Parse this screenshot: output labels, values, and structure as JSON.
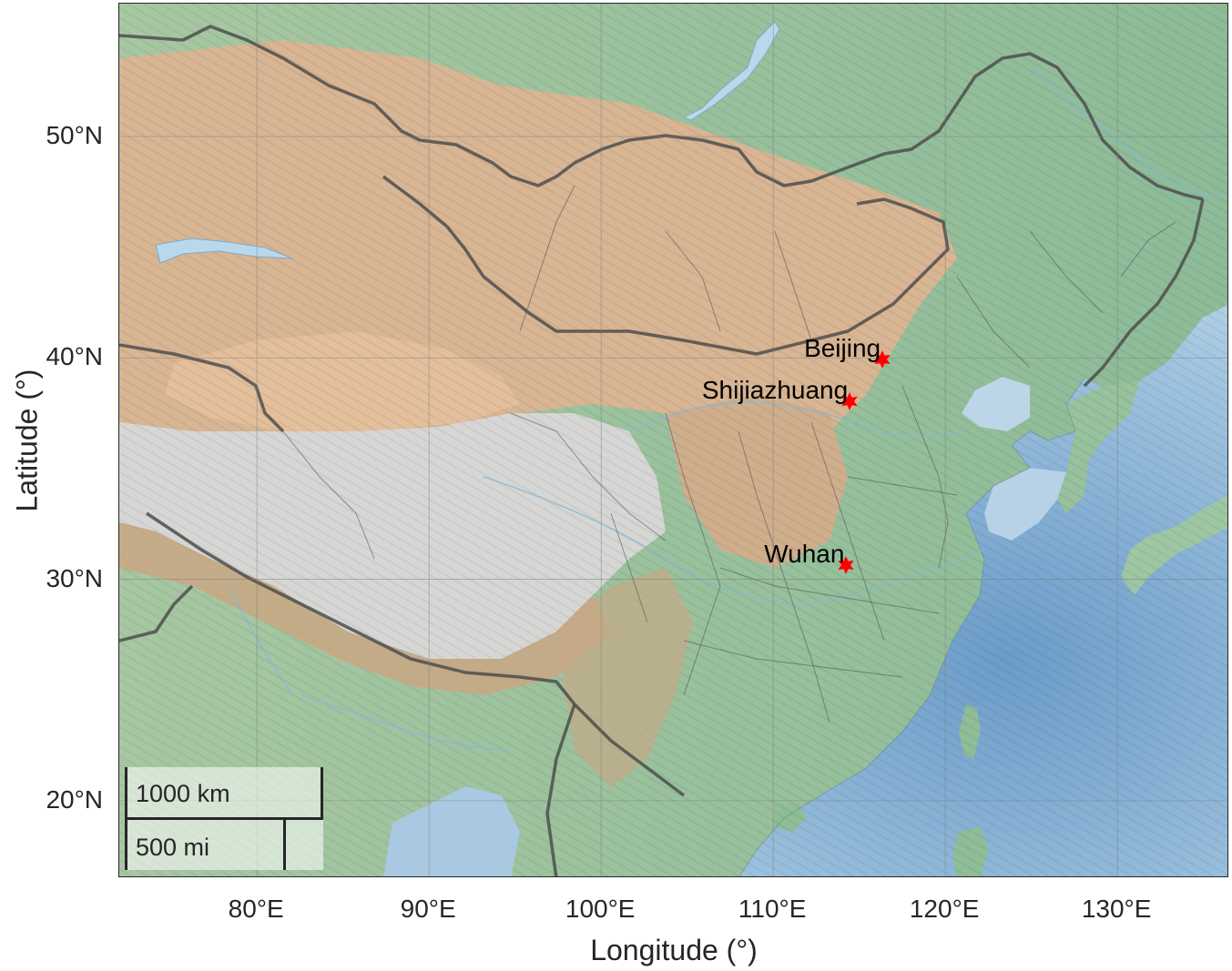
{
  "axes": {
    "x_title": "Longitude (°)",
    "y_title": "Latitude (°)",
    "x_ticks": [
      {
        "value": 80,
        "label": "80°E"
      },
      {
        "value": 90,
        "label": "90°E"
      },
      {
        "value": 100,
        "label": "100°E"
      },
      {
        "value": 110,
        "label": "110°E"
      },
      {
        "value": 120,
        "label": "120°E"
      },
      {
        "value": 130,
        "label": "130°E"
      }
    ],
    "y_ticks": [
      {
        "value": 50,
        "label": "50°N"
      },
      {
        "value": 40,
        "label": "40°N"
      },
      {
        "value": 30,
        "label": "30°N"
      },
      {
        "value": 20,
        "label": "20°N"
      }
    ],
    "xlim": [
      72,
      136.5
    ],
    "ylim": [
      16.5,
      56
    ],
    "grid": true
  },
  "cities": [
    {
      "name": "Beijing",
      "lon": 116.4,
      "lat": 39.9
    },
    {
      "name": "Shijiazhuang",
      "lon": 114.5,
      "lat": 38.0
    },
    {
      "name": "Wuhan",
      "lon": 114.3,
      "lat": 30.6
    }
  ],
  "scale_bar": {
    "km_label": "1000 km",
    "mi_label": "500 mi"
  },
  "colors": {
    "marker": "#ff0000",
    "grid": "#7a7a7a",
    "axis_text": "#262626",
    "ocean": "#7ea9cf",
    "land_green": "#8cba97",
    "land_tan": "#d9b596",
    "plateau": "#d9d9d9"
  }
}
